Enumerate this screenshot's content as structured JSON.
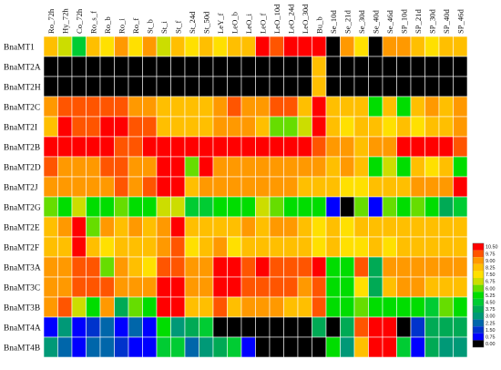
{
  "chart_data": {
    "type": "heatmap",
    "x": [
      "Ro_72h",
      "Hy_72h",
      "Co_72h",
      "Ro_s_f",
      "Ro_b",
      "Ro_i",
      "Ro_f",
      "St_b",
      "St_i",
      "St_f",
      "St_24d",
      "St_50d",
      "LeY_f",
      "LeO_b",
      "LeO_i",
      "LeO_f",
      "LeO_10d",
      "LeO_24d",
      "LeO_30d",
      "Bu_b",
      "Se_10d",
      "Se_21d",
      "Se_30d",
      "Se_40d",
      "Se_46d",
      "SP_10d",
      "SP_21d",
      "SP_30d",
      "SP_40d",
      "SP_46d"
    ],
    "y": [
      "BnaMT1",
      "BnaMT2A",
      "BnaMT2H",
      "BnaMT2C",
      "BnaMT2I",
      "BnaMT2B",
      "BnaMT2D",
      "BnaMT2J",
      "BnaMT2G",
      "BnaMT2E",
      "BnaMT2F",
      "BnaMT3A",
      "BnaMT3C",
      "BnaMT3B",
      "BnaMT4A",
      "BnaMT4B"
    ],
    "values": [
      [
        8.0,
        6.5,
        4.5,
        8.5,
        7.5,
        8.75,
        7.75,
        8.75,
        7.0,
        8.5,
        7.75,
        8.25,
        7.75,
        8.25,
        8.0,
        10.5,
        10.0,
        10.5,
        10.5,
        10.25,
        0.0,
        9.0,
        7.75,
        0.0,
        8.75,
        8.75,
        8.5,
        7.5,
        8.25,
        8.0
      ],
      [
        0.0,
        0.0,
        0.0,
        0.0,
        0.0,
        0.0,
        0.0,
        0.0,
        0.0,
        0.0,
        0.0,
        0.0,
        0.0,
        0.0,
        0.0,
        0.0,
        0.0,
        0.0,
        0.0,
        8.25,
        0.0,
        0.0,
        0.0,
        0.0,
        0.0,
        0.0,
        0.0,
        0.0,
        0.0,
        0.0
      ],
      [
        0.0,
        0.0,
        0.0,
        0.0,
        0.0,
        0.0,
        0.0,
        0.0,
        0.0,
        0.0,
        0.0,
        0.0,
        0.0,
        0.0,
        0.0,
        0.0,
        0.0,
        0.0,
        0.0,
        8.25,
        0.0,
        0.0,
        0.0,
        0.0,
        0.0,
        0.0,
        0.0,
        0.0,
        0.0,
        0.0
      ],
      [
        8.75,
        10.0,
        9.5,
        10.0,
        9.75,
        10.0,
        9.25,
        9.25,
        8.5,
        8.0,
        8.5,
        8.5,
        9.0,
        9.5,
        9.0,
        9.0,
        9.5,
        10.0,
        8.0,
        10.25,
        8.25,
        8.0,
        8.5,
        5.0,
        8.25,
        5.5,
        8.5,
        9.0,
        8.25,
        8.75
      ],
      [
        8.5,
        10.25,
        10.0,
        10.0,
        10.5,
        10.25,
        9.5,
        10.0,
        8.25,
        8.5,
        8.25,
        8.25,
        9.0,
        8.75,
        9.25,
        8.0,
        6.0,
        5.75,
        6.5,
        10.25,
        8.0,
        7.75,
        8.0,
        8.5,
        7.75,
        8.0,
        7.5,
        8.0,
        8.0,
        8.75
      ],
      [
        10.5,
        10.25,
        10.5,
        10.25,
        10.25,
        10.0,
        9.75,
        10.25,
        10.5,
        10.25,
        10.25,
        10.5,
        10.5,
        10.25,
        10.25,
        10.5,
        10.25,
        10.5,
        10.25,
        9.5,
        8.75,
        9.0,
        8.0,
        9.0,
        8.75,
        10.5,
        10.25,
        10.5,
        10.25,
        9.5
      ],
      [
        9.5,
        9.25,
        9.0,
        9.25,
        9.5,
        9.75,
        9.0,
        9.25,
        10.25,
        10.25,
        6.0,
        10.25,
        8.75,
        9.0,
        9.25,
        9.0,
        9.25,
        9.0,
        8.75,
        8.75,
        8.5,
        8.75,
        8.25,
        5.0,
        6.75,
        5.0,
        8.5,
        7.5,
        8.5,
        5.0
      ],
      [
        9.25,
        9.0,
        9.0,
        9.25,
        9.25,
        9.5,
        8.75,
        10.0,
        10.25,
        10.25,
        8.25,
        8.75,
        8.75,
        8.75,
        9.0,
        9.25,
        9.0,
        9.0,
        8.5,
        8.5,
        8.25,
        7.75,
        7.75,
        8.5,
        8.0,
        8.25,
        9.0,
        8.75,
        8.75,
        10.5
      ],
      [
        6.0,
        5.0,
        6.75,
        5.5,
        5.25,
        5.75,
        5.0,
        5.25,
        7.0,
        6.5,
        4.75,
        4.25,
        5.5,
        5.25,
        5.25,
        6.75,
        5.75,
        5.5,
        5.0,
        5.5,
        0.75,
        0.0,
        5.75,
        0.5,
        6.0,
        5.25,
        5.75,
        5.5,
        3.75,
        4.25
      ],
      [
        8.5,
        8.75,
        10.5,
        6.0,
        9.0,
        8.25,
        8.75,
        8.25,
        9.25,
        10.5,
        8.0,
        8.5,
        8.25,
        8.5,
        8.75,
        8.5,
        9.0,
        8.75,
        8.5,
        7.75,
        8.25,
        7.75,
        8.5,
        8.0,
        8.25,
        8.0,
        8.25,
        8.0,
        8.5,
        8.25
      ],
      [
        8.25,
        8.5,
        10.25,
        8.5,
        7.75,
        8.5,
        8.25,
        8.5,
        9.0,
        10.0,
        7.5,
        8.0,
        8.75,
        7.75,
        8.25,
        8.5,
        8.5,
        8.0,
        8.0,
        7.75,
        8.0,
        7.75,
        7.5,
        8.25,
        7.75,
        8.25,
        8.0,
        8.25,
        8.25,
        8.5
      ],
      [
        9.25,
        9.0,
        10.0,
        9.5,
        6.0,
        8.75,
        8.5,
        7.75,
        9.5,
        9.75,
        9.25,
        9.0,
        10.5,
        10.25,
        10.0,
        10.25,
        10.0,
        9.75,
        9.5,
        10.25,
        5.25,
        5.5,
        9.5,
        3.75,
        9.0,
        9.25,
        8.75,
        9.0,
        8.75,
        9.25
      ],
      [
        9.25,
        9.0,
        9.5,
        9.75,
        9.5,
        8.75,
        9.25,
        9.25,
        10.25,
        10.25,
        9.25,
        9.0,
        10.25,
        10.25,
        10.0,
        9.75,
        10.0,
        9.5,
        9.25,
        10.0,
        5.0,
        5.25,
        7.75,
        3.5,
        8.25,
        8.75,
        8.75,
        8.5,
        8.5,
        8.25
      ],
      [
        9.0,
        9.5,
        6.5,
        5.25,
        8.75,
        3.75,
        5.75,
        5.0,
        10.25,
        10.5,
        8.5,
        8.0,
        9.5,
        8.0,
        9.25,
        9.0,
        8.75,
        8.5,
        8.5,
        9.5,
        5.25,
        5.0,
        5.75,
        5.0,
        5.5,
        5.25,
        5.5,
        4.25,
        5.75,
        5.0
      ],
      [
        0.75,
        2.75,
        1.0,
        1.25,
        2.5,
        0.75,
        2.0,
        0.5,
        5.0,
        3.25,
        3.75,
        4.25,
        0.0,
        0.0,
        0.0,
        0.0,
        0.0,
        0.0,
        0.0,
        3.75,
        0.0,
        3.5,
        9.75,
        10.5,
        10.5,
        0.0,
        1.25,
        3.5,
        4.0,
        3.5
      ],
      [
        3.25,
        2.25,
        0.75,
        2.25,
        2.5,
        1.25,
        0.5,
        0.75,
        4.25,
        4.5,
        2.5,
        3.0,
        3.75,
        4.5,
        0.5,
        0.0,
        0.0,
        0.0,
        0.0,
        0.0,
        5.0,
        3.0,
        8.5,
        10.5,
        10.5,
        4.75,
        1.0,
        4.0,
        2.75,
        3.25
      ]
    ],
    "scale": {
      "min": 0.0,
      "max": 10.5,
      "ticks": [
        "10.50",
        "9.75",
        "9.00",
        "8.25",
        "7.50",
        "6.75",
        "6.00",
        "5.25",
        "4.50",
        "3.75",
        "3.00",
        "2.25",
        "1.50",
        "0.75",
        "0.00"
      ],
      "colors": [
        "#ff0000",
        "#ff5500",
        "#ff9900",
        "#ffbf00",
        "#ffe000",
        "#ccdd00",
        "#66dd00",
        "#00dd00",
        "#00cc33",
        "#00aa55",
        "#009977",
        "#0066aa",
        "#0033cc",
        "#0000ff",
        "#000000"
      ]
    },
    "legend": "right"
  }
}
